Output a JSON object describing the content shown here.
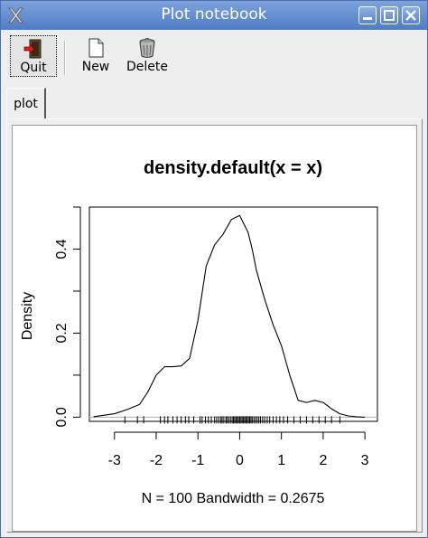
{
  "window": {
    "title": "Plot notebook"
  },
  "toolbar": {
    "quit_label": "Quit",
    "new_label": "New",
    "delete_label": "Delete"
  },
  "tabs": [
    {
      "label": "plot",
      "selected": true
    }
  ],
  "chart_data": {
    "type": "line",
    "title": "density.default(x = x)",
    "xlabel": "N = 100   Bandwidth = 0.2675",
    "ylabel": "Density",
    "xlim": [
      -3.6,
      3.3
    ],
    "ylim": [
      -0.01,
      0.5
    ],
    "xticks": [
      "-3",
      "-2",
      "-1",
      "0",
      "1",
      "2",
      "3"
    ],
    "yticks": [
      "0.0",
      "0.2",
      "0.4"
    ],
    "grid": false,
    "series": [
      {
        "x": [
          -3.5,
          -3.0,
          -2.7,
          -2.4,
          -2.2,
          -2.0,
          -1.8,
          -1.6,
          -1.4,
          -1.2,
          -1.0,
          -0.8,
          -0.6,
          -0.4,
          -0.2,
          0.0,
          0.2,
          0.3,
          0.4,
          0.6,
          0.8,
          1.0,
          1.2,
          1.4,
          1.6,
          1.8,
          2.0,
          2.2,
          2.4,
          2.6,
          2.8,
          3.0
        ],
        "y": [
          0.001,
          0.008,
          0.018,
          0.03,
          0.06,
          0.1,
          0.12,
          0.12,
          0.122,
          0.14,
          0.23,
          0.36,
          0.41,
          0.435,
          0.47,
          0.48,
          0.44,
          0.4,
          0.35,
          0.28,
          0.22,
          0.17,
          0.1,
          0.04,
          0.035,
          0.04,
          0.035,
          0.02,
          0.008,
          0.003,
          0.001,
          0.0
        ]
      }
    ],
    "rug": [
      -2.75,
      -2.45,
      -2.3,
      -1.9,
      -1.8,
      -1.72,
      -1.6,
      -1.5,
      -1.4,
      -1.3,
      -1.22,
      -1.1,
      -0.95,
      -0.9,
      -0.82,
      -0.75,
      -0.68,
      -0.6,
      -0.55,
      -0.5,
      -0.45,
      -0.42,
      -0.38,
      -0.33,
      -0.3,
      -0.26,
      -0.22,
      -0.18,
      -0.15,
      -0.12,
      -0.09,
      -0.06,
      -0.03,
      0.0,
      0.03,
      0.06,
      0.09,
      0.12,
      0.15,
      0.18,
      0.21,
      0.24,
      0.27,
      0.3,
      0.34,
      0.38,
      0.42,
      0.46,
      0.5,
      0.55,
      0.6,
      0.66,
      0.72,
      0.8,
      0.88,
      0.96,
      1.05,
      1.15,
      1.3,
      1.45,
      1.6,
      1.75,
      1.9,
      2.05,
      2.2,
      2.4
    ]
  }
}
